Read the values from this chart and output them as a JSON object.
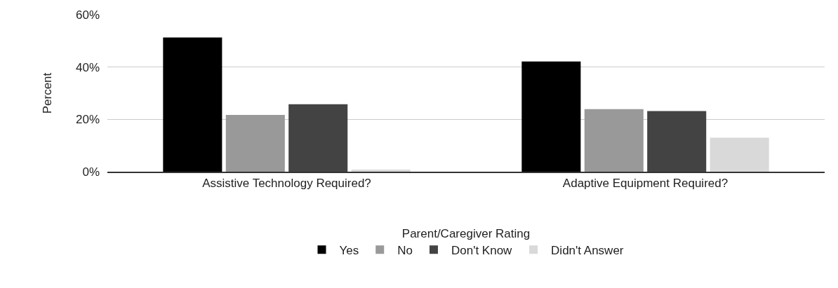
{
  "chart_data": {
    "type": "bar",
    "ylabel": "Percent",
    "legend_title": "Parent/Caregiver Rating",
    "categories": [
      "Assistive Technology Required?",
      "Adaptive Equipment Required?"
    ],
    "series": [
      {
        "name": "Yes",
        "color": "#000000",
        "values": [
          51.3,
          42.1
        ]
      },
      {
        "name": "No",
        "color": "#999999",
        "values": [
          21.7,
          23.9
        ]
      },
      {
        "name": "Don't Know",
        "color": "#434343",
        "values": [
          25.8,
          23.2
        ]
      },
      {
        "name": "Didn't Answer",
        "color": "#d9d9d9",
        "values": [
          0.8,
          13.0
        ]
      }
    ],
    "ylim": [
      0,
      60
    ],
    "yticks": [
      {
        "value": 0,
        "label": "0%"
      },
      {
        "value": 20,
        "label": "20%"
      },
      {
        "value": 40,
        "label": "40%"
      },
      {
        "value": 60,
        "label": "60%"
      }
    ],
    "grid": "y",
    "legend": "bottom"
  }
}
